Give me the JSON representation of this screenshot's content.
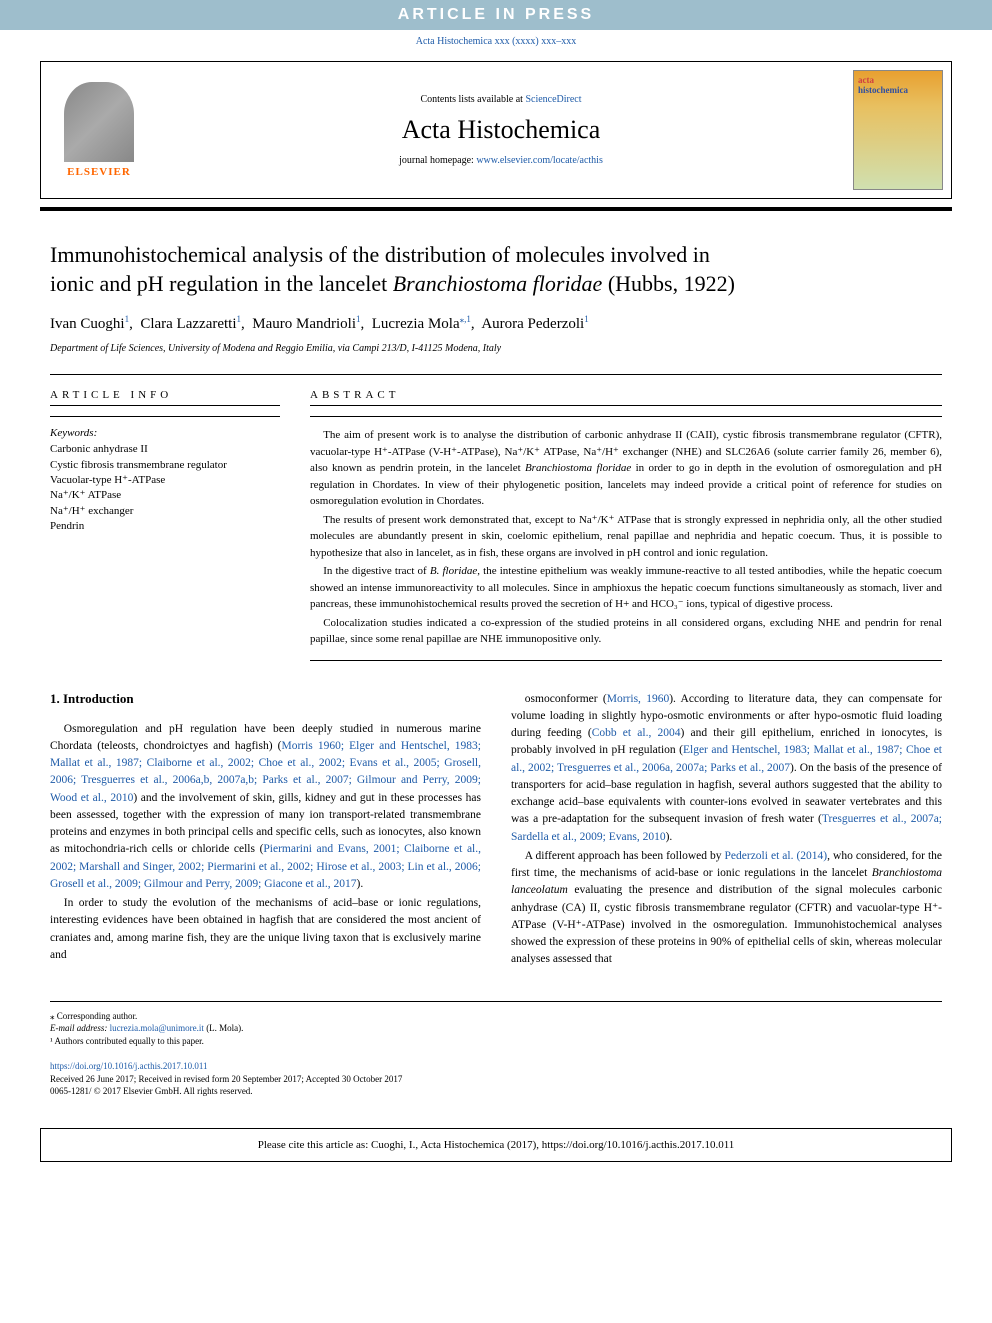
{
  "banner": {
    "text": "ARTICLE IN PRESS"
  },
  "topCitation": "Acta Histochemica xxx (xxxx) xxx–xxx",
  "header": {
    "contentsPrefix": "Contents lists available at ",
    "contentsLink": "ScienceDirect",
    "journalName": "Acta Histochemica",
    "homepagePrefix": "journal homepage: ",
    "homepageUrl": "www.elsevier.com/locate/acthis",
    "elsevierLabel": "ELSEVIER",
    "coverActa": "acta",
    "coverHisto": "histochemica"
  },
  "title": {
    "line1": "Immunohistochemical analysis of the distribution of molecules involved in",
    "line2prefix": "ionic and pH regulation in the lancelet ",
    "species": "Branchiostoma floridae",
    "line2suffix": " (Hubbs, 1922)"
  },
  "authors": {
    "a1": "Ivan Cuoghi",
    "a2": "Clara Lazzaretti",
    "a3": "Mauro Mandrioli",
    "a4": "Lucrezia Mola",
    "a5": "Aurora Pederzoli",
    "sup1": "1",
    "supStar1": "⁎,1"
  },
  "affiliation": "Department of Life Sciences, University of Modena and Reggio Emilia, via Campi 213/D, I-41125 Modena, Italy",
  "info": {
    "label": "ARTICLE INFO",
    "keywordsLabel": "Keywords:",
    "keywords": [
      "Carbonic anhydrase II",
      "Cystic fibrosis transmembrane regulator",
      "Vacuolar-type H⁺-ATPase",
      "Na⁺/K⁺ ATPase",
      "Na⁺/H⁺ exchanger",
      "Pendrin"
    ]
  },
  "abstract": {
    "label": "ABSTRACT",
    "p1_a": "The aim of present work is to analyse the distribution of carbonic anhydrase II (CAII), cystic fibrosis transmembrane regulator (CFTR), vacuolar-type H⁺-ATPase (V-H⁺-ATPase), Na⁺/K⁺ ATPase, Na⁺/H⁺ exchanger (NHE) and SLC26A6 (solute carrier family 26, member 6), also known as pendrin protein, in the lancelet ",
    "p1_species": "Branchiostoma floridae",
    "p1_b": " in order to go in depth in the evolution of osmoregulation and pH regulation in Chordates. In view of their phylogenetic position, lancelets may indeed provide a critical point of reference for studies on osmoregulation evolution in Chordates.",
    "p2": "The results of present work demonstrated that, except to Na⁺/K⁺ ATPase that is strongly expressed in nephridia only, all the other studied molecules are abundantly present in skin, coelomic epithelium, renal papillae and nephridia and hepatic coecum. Thus, it is possible to hypothesize that also in lancelet, as in fish, these organs are involved in pH control and ionic regulation.",
    "p3_a": "In the digestive tract of ",
    "p3_species": "B. floridae",
    "p3_b": ", the intestine epithelium was weakly immune-reactive to all tested antibodies, while the hepatic coecum showed an intense immunoreactivity to all molecules. Since in amphioxus the hepatic coecum functions simultaneously as stomach, liver and pancreas, these immunohistochemical results proved the secretion of H+ and HCO₃⁻ ions, typical of digestive process.",
    "p4": "Colocalization studies indicated a co-expression of the studied proteins in all considered organs, excluding NHE and pendrin for renal papillae, since some renal papillae are NHE immunopositive only."
  },
  "intro": {
    "heading": "1. Introduction"
  },
  "leftCol": {
    "p1_a": "Osmoregulation and pH regulation have been deeply studied in numerous marine Chordata (teleosts, chondroictyes and hagfish) (",
    "p1_ref": "Morris 1960; Elger and Hentschel, 1983; Mallat et al., 1987; Claiborne et al., 2002; Choe et al., 2002; Evans et al., 2005; Grosell, 2006; Tresguerres et al., 2006a,b, 2007a,b; Parks et al., 2007; Gilmour and Perry, 2009; Wood et al., 2010",
    "p1_b": ") and the involvement of skin, gills, kidney and gut in these processes has been assessed, together with the expression of many ion transport-related transmembrane proteins and enzymes in both principal cells and specific cells, such as ionocytes, also known as mitochondria-rich cells or chloride cells (",
    "p1_ref2": "Piermarini and Evans, 2001; Claiborne et al., 2002; Marshall and Singer, 2002; Piermarini et al., 2002; Hirose et al., 2003; Lin et al., 2006; Grosell et al., 2009; Gilmour and Perry, 2009; Giacone et al., 2017",
    "p1_c": ").",
    "p2": "In order to study the evolution of the mechanisms of acid–base or ionic regulations, interesting evidences have been obtained in hagfish that are considered the most ancient of craniates and, among marine fish, they are the unique living taxon that is exclusively marine and"
  },
  "rightCol": {
    "p1_a": "osmoconformer (",
    "p1_ref1": "Morris, 1960",
    "p1_b": "). According to literature data, they can compensate for volume loading in slightly hypo-osmotic environments or after hypo-osmotic fluid loading during feeding (",
    "p1_ref2": "Cobb et al., 2004",
    "p1_c": ") and their gill epithelium, enriched in ionocytes, is probably involved in pH regulation (",
    "p1_ref3": "Elger and Hentschel, 1983; Mallat et al., 1987; Choe et al., 2002; Tresguerres et al., 2006a, 2007a; Parks et al., 2007",
    "p1_d": "). On the basis of the presence of transporters for acid–base regulation in hagfish, several authors suggested that the ability to exchange acid–base equivalents with counter-ions evolved in seawater vertebrates and this was a pre-adaptation for the subsequent invasion of fresh water (",
    "p1_ref4": "Tresguerres et al., 2007a; Sardella et al., 2009; Evans, 2010",
    "p1_e": ").",
    "p2_a": "A different approach has been followed by ",
    "p2_ref1": "Pederzoli et al. (2014)",
    "p2_b": ", who considered, for the first time, the mechanisms of acid-base or ionic regulations in the lancelet ",
    "p2_species": "Branchiostoma lanceolatum",
    "p2_c": " evaluating the presence and distribution of the signal molecules carbonic anhydrase (CA) II, cystic fibrosis transmembrane regulator (CFTR) and vacuolar-type H⁺-ATPase (V-H⁺-ATPase) involved in the osmoregulation. Immunohistochemical analyses showed the expression of these proteins in 90% of epithelial cells of skin, whereas molecular analyses assessed that"
  },
  "footer": {
    "corr": "⁎ Corresponding author.",
    "emailLabel": "E-mail address: ",
    "email": "lucrezia.mola@unimore.it",
    "emailSuffix": " (L. Mola).",
    "contrib": "¹ Authors contributed equally to this paper.",
    "doi": "https://doi.org/10.1016/j.acthis.2017.10.011",
    "received": "Received 26 June 2017; Received in revised form 20 September 2017; Accepted 30 October 2017",
    "copyright": "0065-1281/ © 2017 Elsevier GmbH. All rights reserved."
  },
  "citeBox": "Please cite this article as: Cuoghi, I., Acta Histochemica (2017), https://doi.org/10.1016/j.acthis.2017.10.011",
  "styling": {
    "bannerBg": "#9ebecc",
    "bannerColor": "#ffffff",
    "linkColor": "#1e5ba8",
    "elsevierColor": "#ff6600",
    "bodyBg": "#ffffff",
    "textColor": "#000000",
    "pageWidth": 992
  }
}
